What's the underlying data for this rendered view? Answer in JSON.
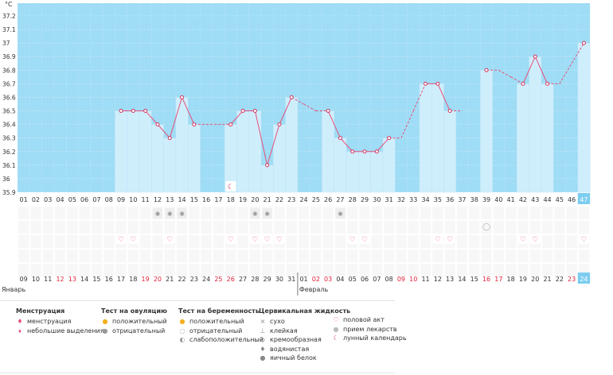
{
  "chart_data": {
    "type": "line",
    "unit_label": "°C",
    "y_min": 35.9,
    "y_max": 37.2,
    "y_ticks": [
      "37.2",
      "37.1",
      "37",
      "36.9",
      "36.8",
      "36.7",
      "36.6",
      "36.5",
      "36.4",
      "36.3",
      "36.2",
      "36.1",
      "36",
      "35.9"
    ],
    "days": [
      "01",
      "02",
      "03",
      "04",
      "05",
      "06",
      "07",
      "08",
      "09",
      "10",
      "11",
      "12",
      "13",
      "14",
      "15",
      "16",
      "17",
      "18",
      "19",
      "20",
      "21",
      "22",
      "23",
      "24",
      "25",
      "26",
      "27",
      "28",
      "29",
      "30",
      "31",
      "32",
      "33",
      "34",
      "35",
      "36",
      "37",
      "38",
      "39",
      "40",
      "41",
      "42",
      "43",
      "44",
      "45",
      "46",
      "47"
    ],
    "current_day": "47",
    "temps": [
      null,
      null,
      null,
      null,
      null,
      null,
      null,
      null,
      36.5,
      36.5,
      36.5,
      36.4,
      36.3,
      36.6,
      36.4,
      null,
      null,
      36.4,
      36.5,
      36.5,
      36.1,
      36.4,
      36.6,
      null,
      null,
      36.5,
      36.3,
      36.2,
      36.2,
      36.2,
      36.3,
      null,
      null,
      36.7,
      36.7,
      36.5,
      null,
      null,
      36.8,
      null,
      null,
      36.7,
      36.9,
      36.7,
      null,
      null,
      37.0
    ],
    "interpolated_temps": {
      "16": 36.4,
      "17": 36.4,
      "24": 36.55,
      "25": 36.5,
      "32": 36.3,
      "33": 36.5,
      "37": 36.5,
      "40": 36.8,
      "41": 36.75,
      "45": 36.7,
      "46": 36.85
    },
    "dates": [
      "09",
      "10",
      "11",
      "12",
      "13",
      "14",
      "15",
      "16",
      "17",
      "18",
      "19",
      "20",
      "21",
      "22",
      "23",
      "24",
      "25",
      "26",
      "27",
      "28",
      "29",
      "30",
      "31",
      "01",
      "02",
      "03",
      "04",
      "05",
      "06",
      "07",
      "08",
      "09",
      "10",
      "11",
      "12",
      "13",
      "14",
      "15",
      "16",
      "17",
      "18",
      "19",
      "20",
      "21",
      "22",
      "23",
      "24"
    ],
    "red_dates": [
      3,
      4,
      10,
      11,
      16,
      17,
      24,
      25,
      31,
      32,
      38,
      39,
      45,
      46
    ],
    "today_date": "24",
    "month_january": "Январь",
    "month_february": "Февраль",
    "ovulation_negative_days": [
      12,
      13,
      14,
      20,
      21,
      27
    ],
    "pregnancy_negative_days": [
      39
    ],
    "intercourse_days": [
      9,
      10,
      13,
      18,
      20,
      21,
      22,
      28,
      29,
      35,
      36,
      42,
      43,
      47
    ],
    "moon_day": 18,
    "colors": {
      "bar": "#cfeefc",
      "chart_bg": "#9fdcf5",
      "line": "#e8507a",
      "point": "#d1335f",
      "red_text": "#e0213a",
      "today_bg": "#7ccdf0"
    }
  },
  "legend": {
    "menstruation": {
      "title": "Менструация",
      "items": [
        "менструация",
        "небольшие выделения"
      ]
    },
    "ovulation": {
      "title": "Тест на овуляцию",
      "items": [
        "положительный",
        "отрицательный"
      ]
    },
    "pregnancy": {
      "title": "Тест на беременность",
      "items": [
        "положительный",
        "отрицательный",
        "слабоположительный"
      ]
    },
    "cervical": {
      "title": "Цервикальная жидкость",
      "items": [
        "сухо",
        "клейкая",
        "кремообразная",
        "водянистая",
        "яичный белок"
      ]
    },
    "other": {
      "items": [
        "половой акт",
        "прием лекарств",
        "лунный календарь"
      ]
    }
  }
}
